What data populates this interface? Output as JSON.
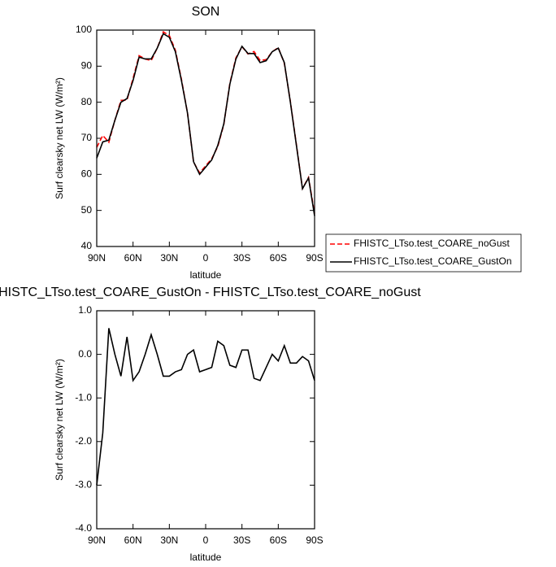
{
  "chart_data": [
    {
      "type": "line",
      "title": "SON",
      "xlabel": "latitude",
      "ylabel": "Surf clearsky net LW (W/m²)",
      "x": [
        90,
        85,
        80,
        75,
        70,
        65,
        60,
        55,
        50,
        45,
        40,
        35,
        30,
        25,
        20,
        15,
        10,
        5,
        0,
        -5,
        -10,
        -15,
        -20,
        -25,
        -30,
        -35,
        -40,
        -45,
        -50,
        -55,
        -60,
        -65,
        -70,
        -75,
        -80,
        -85,
        -90
      ],
      "series": [
        {
          "name": "FHISTC_LTso.test_COARE_noGust",
          "color": "#ff0000",
          "linestyle": "dashed",
          "values": [
            67.5,
            70.8,
            68.9,
            75,
            80.5,
            80.6,
            86.6,
            92.9,
            92,
            91.55,
            95,
            99.5,
            98.5,
            94.4,
            86.35,
            77,
            63.4,
            60.4,
            62.35,
            64.3,
            67.7,
            73.8,
            85.25,
            92.3,
            95.4,
            93.4,
            94.05,
            91.6,
            91.8,
            94,
            95.15,
            90.8,
            80.2,
            68.2,
            56.05,
            59.15,
            49.1
          ]
        },
        {
          "name": "FHISTC_LTso.test_COARE_GustOn",
          "color": "#000000",
          "linestyle": "solid",
          "values": [
            64.5,
            69,
            69.5,
            75,
            80,
            81,
            86,
            92.5,
            92,
            92,
            95,
            99,
            98,
            94,
            86,
            77,
            63.5,
            60,
            62,
            64,
            68,
            74,
            85,
            92,
            95.5,
            93.5,
            93.5,
            91,
            91.5,
            94,
            95,
            91,
            80,
            68,
            56,
            59,
            48.5
          ]
        }
      ],
      "xlim": [
        90,
        -90
      ],
      "xticks": [
        {
          "value": 90,
          "label": "90N"
        },
        {
          "value": 60,
          "label": "60N"
        },
        {
          "value": 30,
          "label": "30N"
        },
        0,
        {
          "value": -30,
          "label": "30S"
        },
        {
          "value": -60,
          "label": "60S"
        },
        {
          "value": -90,
          "label": "90S"
        }
      ],
      "ylim": [
        40,
        100
      ],
      "yticks": [
        40,
        50,
        60,
        70,
        80,
        90,
        100
      ],
      "legend": "right"
    },
    {
      "type": "line",
      "title": "FHISTC_LTso.test_COARE_GustOn - FHISTC_LTso.test_COARE_noGust",
      "xlabel": "latitude",
      "ylabel": "Surf clearsky net LW (W/m²)",
      "x": [
        90,
        85,
        80,
        75,
        70,
        65,
        60,
        55,
        50,
        45,
        40,
        35,
        30,
        25,
        20,
        15,
        10,
        5,
        0,
        -5,
        -10,
        -15,
        -20,
        -25,
        -30,
        -35,
        -40,
        -45,
        -50,
        -55,
        -60,
        -65,
        -70,
        -75,
        -80,
        -85,
        -90
      ],
      "series": [
        {
          "color": "#000000",
          "linestyle": "solid",
          "values": [
            -3.0,
            -1.8,
            0.6,
            0,
            -0.5,
            0.4,
            -0.6,
            -0.4,
            0,
            0.45,
            0,
            -0.5,
            -0.5,
            -0.4,
            -0.35,
            0,
            0.1,
            -0.4,
            -0.35,
            -0.3,
            0.3,
            0.2,
            -0.25,
            -0.3,
            0.1,
            0.1,
            -0.55,
            -0.6,
            -0.3,
            0,
            -0.15,
            0.2,
            -0.2,
            -0.2,
            -0.05,
            -0.15,
            -0.6
          ]
        }
      ],
      "xlim": [
        90,
        -90
      ],
      "xticks": [
        {
          "value": 90,
          "label": "90N"
        },
        {
          "value": 60,
          "label": "60N"
        },
        {
          "value": 30,
          "label": "30N"
        },
        0,
        {
          "value": -30,
          "label": "30S"
        },
        {
          "value": -60,
          "label": "60S"
        },
        {
          "value": -90,
          "label": "90S"
        }
      ],
      "ylim": [
        -4,
        1
      ],
      "yticks": [
        {
          "value": 1,
          "label": "1.0"
        },
        {
          "value": 0,
          "label": "0.0"
        },
        {
          "value": -1,
          "label": "-1.0"
        },
        {
          "value": -2,
          "label": "-2.0"
        },
        {
          "value": -3,
          "label": "-3.0"
        },
        {
          "value": -4,
          "label": "-4.0"
        }
      ]
    }
  ]
}
